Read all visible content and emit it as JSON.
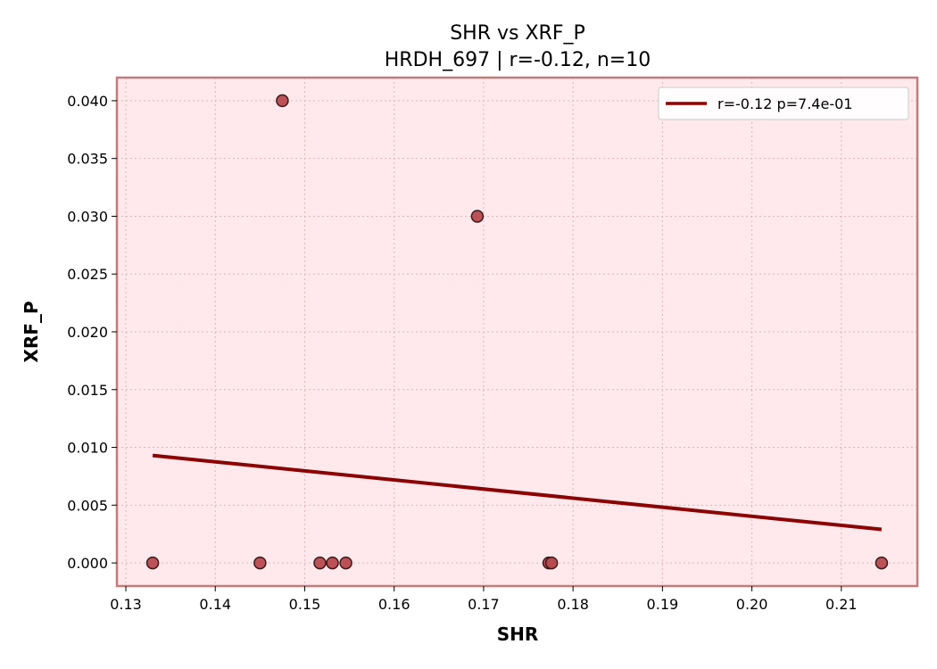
{
  "chart_data": {
    "type": "scatter",
    "title": "SHR vs XRF_P",
    "subtitle": "HRDH_697 | r=-0.12, n=10",
    "xlabel": "SHR",
    "ylabel": "XRF_P",
    "xlim": [
      0.129,
      0.2185
    ],
    "ylim": [
      -0.002,
      0.042
    ],
    "xticks": [
      0.13,
      0.14,
      0.15,
      0.16,
      0.17,
      0.18,
      0.19,
      0.2,
      0.21
    ],
    "xtick_labels": [
      "0.13",
      "0.14",
      "0.15",
      "0.16",
      "0.17",
      "0.18",
      "0.19",
      "0.20",
      "0.21"
    ],
    "yticks": [
      0.0,
      0.005,
      0.01,
      0.015,
      0.02,
      0.025,
      0.03,
      0.035,
      0.04
    ],
    "ytick_labels": [
      "0.000",
      "0.005",
      "0.010",
      "0.015",
      "0.020",
      "0.025",
      "0.030",
      "0.035",
      "0.040"
    ],
    "grid": true,
    "legend_position": "top-right",
    "points": [
      {
        "x": 0.133,
        "y": 0.0
      },
      {
        "x": 0.145,
        "y": 0.0
      },
      {
        "x": 0.1475,
        "y": 0.04
      },
      {
        "x": 0.1517,
        "y": 0.0
      },
      {
        "x": 0.1531,
        "y": 0.0
      },
      {
        "x": 0.1546,
        "y": 0.0
      },
      {
        "x": 0.1693,
        "y": 0.03
      },
      {
        "x": 0.1773,
        "y": 0.0
      },
      {
        "x": 0.1776,
        "y": 0.0
      },
      {
        "x": 0.2145,
        "y": 0.0
      }
    ],
    "fit_line": {
      "label": "r=-0.12  p=7.4e-01",
      "x": [
        0.133,
        0.2145
      ],
      "y": [
        0.0093,
        0.0029
      ]
    },
    "colors": {
      "plot_background": "#ffe9ec",
      "frame": "#c47a7a",
      "point_fill": "#b84a4f",
      "point_edge": "#3a1a1a",
      "fit_line": "#8b0000",
      "grid": "#d9b8bc"
    }
  }
}
